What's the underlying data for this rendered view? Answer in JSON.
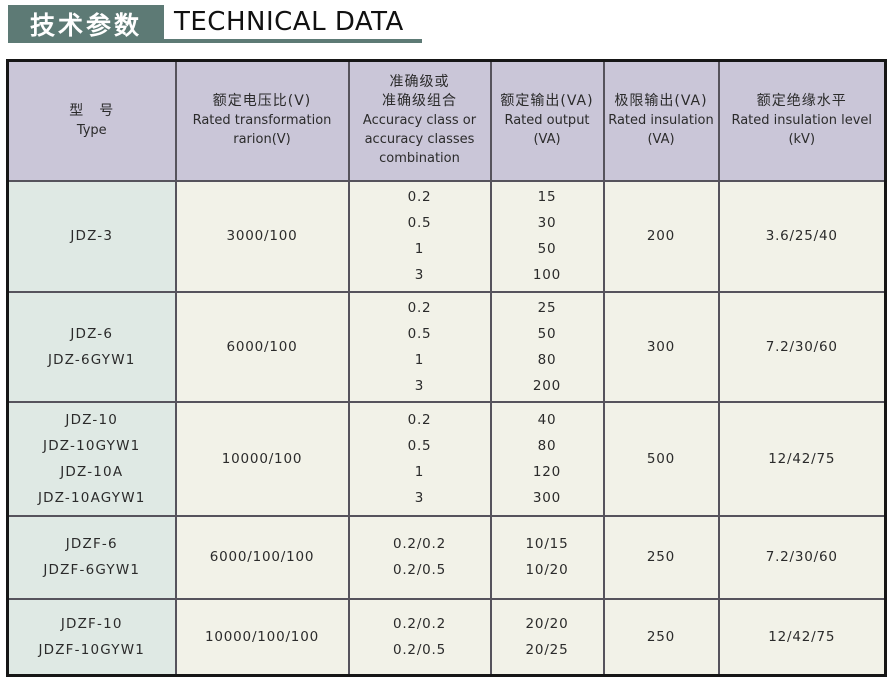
{
  "header": {
    "title_cn": "技术参数",
    "title_en": "TECHNICAL DATA"
  },
  "table": {
    "columns": [
      {
        "key": "type",
        "name": "type",
        "lines": [
          "型　号",
          "Type"
        ]
      },
      {
        "key": "ratio",
        "name": "rated-voltage-ratio",
        "lines": [
          "额定电压比(V)",
          "Rated transformation",
          "rarion(V)"
        ]
      },
      {
        "key": "accuracy",
        "name": "accuracy-class",
        "lines": [
          "准确级或",
          "准确级组合",
          "Accuracy class or",
          "accuracy classes",
          "combination"
        ]
      },
      {
        "key": "rated_output",
        "name": "rated-output",
        "lines": [
          "额定输出(VA)",
          "Rated output",
          "(VA)"
        ]
      },
      {
        "key": "limit_output",
        "name": "limit-output",
        "lines": [
          "极限输出(VA)",
          "Rated insulation",
          "(VA)"
        ]
      },
      {
        "key": "insulation",
        "name": "insulation-level",
        "lines": [
          "额定绝缘水平",
          "Rated insulation level",
          "(kV)"
        ]
      }
    ],
    "rows": [
      {
        "type": [
          "JDZ-3"
        ],
        "ratio": [
          "3000/100"
        ],
        "accuracy": [
          "0.2",
          "0.5",
          "1",
          "3"
        ],
        "rated_output": [
          "15",
          "30",
          "50",
          "100"
        ],
        "limit_output": [
          "200"
        ],
        "insulation": [
          "3.6/25/40"
        ]
      },
      {
        "type": [
          "JDZ-6",
          "JDZ-6GYW1"
        ],
        "ratio": [
          "6000/100"
        ],
        "accuracy": [
          "0.2",
          "0.5",
          "1",
          "3"
        ],
        "rated_output": [
          "25",
          "50",
          "80",
          "200"
        ],
        "limit_output": [
          "300"
        ],
        "insulation": [
          "7.2/30/60"
        ]
      },
      {
        "type": [
          "JDZ-10",
          "JDZ-10GYW1",
          "JDZ-10A",
          "JDZ-10AGYW1"
        ],
        "ratio": [
          "10000/100"
        ],
        "accuracy": [
          "0.2",
          "0.5",
          "1",
          "3"
        ],
        "rated_output": [
          "40",
          "80",
          "120",
          "300"
        ],
        "limit_output": [
          "500"
        ],
        "insulation": [
          "12/42/75"
        ]
      },
      {
        "type": [
          "JDZF-6",
          "JDZF-6GYW1"
        ],
        "ratio": [
          "6000/100/100"
        ],
        "accuracy": [
          "0.2/0.2",
          "0.2/0.5"
        ],
        "rated_output": [
          "10/15",
          "10/20"
        ],
        "limit_output": [
          "250"
        ],
        "insulation": [
          "7.2/30/60"
        ]
      },
      {
        "type": [
          "JDZF-10",
          "JDZF-10GYW1"
        ],
        "ratio": [
          "10000/100/100"
        ],
        "accuracy": [
          "0.2/0.2",
          "0.2/0.5"
        ],
        "rated_output": [
          "20/20",
          "20/25"
        ],
        "limit_output": [
          "250"
        ],
        "insulation": [
          "12/42/75"
        ]
      }
    ]
  },
  "colors": {
    "title_box_bg": "#5d7a75",
    "title_underline": "#5d7a75",
    "title_cn_text": "#ffffff",
    "title_en_text": "#111111",
    "header_row_bg": "#cac6d8",
    "type_column_bg": "#dfe9e4",
    "data_cell_bg": "#f2f2e8",
    "grid_line": "#56535c",
    "outer_border": "#161616",
    "body_text": "#2b2b2b"
  }
}
